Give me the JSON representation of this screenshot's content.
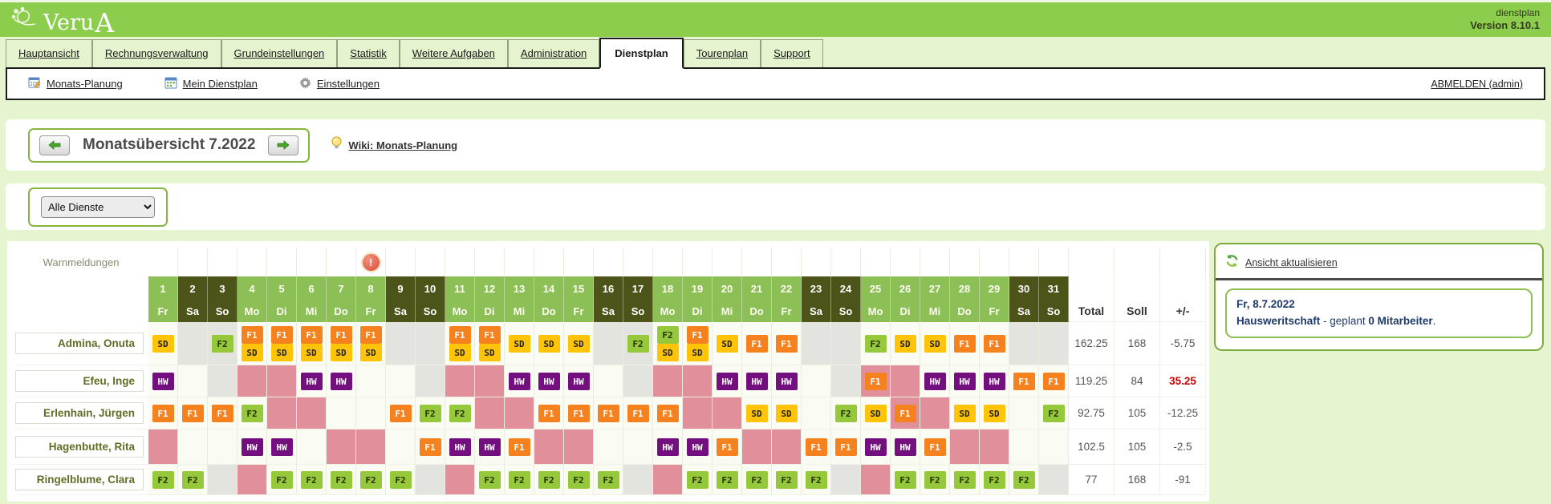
{
  "header": {
    "brand": {
      "main": "Veru",
      "accent": "A"
    },
    "app": "dienstplan",
    "version": "Version 8.10.1"
  },
  "tabs": [
    {
      "label": "Hauptansicht",
      "active": false
    },
    {
      "label": "Rechnungsverwaltung",
      "active": false
    },
    {
      "label": "Grundeinstellungen",
      "active": false
    },
    {
      "label": "Statistik",
      "active": false
    },
    {
      "label": "Weitere Aufgaben",
      "active": false
    },
    {
      "label": "Administration",
      "active": false
    },
    {
      "label": "Dienstplan",
      "active": true
    },
    {
      "label": "Tourenplan",
      "active": false
    },
    {
      "label": "Support",
      "active": false
    }
  ],
  "toolbar": {
    "items": [
      {
        "label": "Monats-Planung",
        "icon": "calendar-edit-icon"
      },
      {
        "label": "Mein Dienstplan",
        "icon": "calendar-icon"
      },
      {
        "label": "Einstellungen",
        "icon": "gear-icon"
      }
    ],
    "logout": "ABMELDEN (admin)"
  },
  "month_nav": {
    "title": "Monatsübersicht 7.2022"
  },
  "wiki_link": "Wiki: Monats-Planung",
  "filter": {
    "selected": "Alle Dienste"
  },
  "roster": {
    "warn_label": "Warnmeldungen",
    "warning_day": 8,
    "totals_headers": [
      "Total",
      "Soll",
      "+/-"
    ],
    "days": [
      {
        "n": "1",
        "dow": "Fr",
        "we": false
      },
      {
        "n": "2",
        "dow": "Sa",
        "we": true
      },
      {
        "n": "3",
        "dow": "So",
        "we": true
      },
      {
        "n": "4",
        "dow": "Mo",
        "we": false
      },
      {
        "n": "5",
        "dow": "Di",
        "we": false
      },
      {
        "n": "6",
        "dow": "Mi",
        "we": false
      },
      {
        "n": "7",
        "dow": "Do",
        "we": false
      },
      {
        "n": "8",
        "dow": "Fr",
        "we": false
      },
      {
        "n": "9",
        "dow": "Sa",
        "we": true
      },
      {
        "n": "10",
        "dow": "So",
        "we": true
      },
      {
        "n": "11",
        "dow": "Mo",
        "we": false
      },
      {
        "n": "12",
        "dow": "Di",
        "we": false
      },
      {
        "n": "13",
        "dow": "Mi",
        "we": false
      },
      {
        "n": "14",
        "dow": "Do",
        "we": false
      },
      {
        "n": "15",
        "dow": "Fr",
        "we": false
      },
      {
        "n": "16",
        "dow": "Sa",
        "we": true
      },
      {
        "n": "17",
        "dow": "So",
        "we": true
      },
      {
        "n": "18",
        "dow": "Mo",
        "we": false
      },
      {
        "n": "19",
        "dow": "Di",
        "we": false
      },
      {
        "n": "20",
        "dow": "Mi",
        "we": false
      },
      {
        "n": "21",
        "dow": "Do",
        "we": false
      },
      {
        "n": "22",
        "dow": "Fr",
        "we": false
      },
      {
        "n": "23",
        "dow": "Sa",
        "we": true
      },
      {
        "n": "24",
        "dow": "So",
        "we": true
      },
      {
        "n": "25",
        "dow": "Mo",
        "we": false
      },
      {
        "n": "26",
        "dow": "Di",
        "we": false
      },
      {
        "n": "27",
        "dow": "Mi",
        "we": false
      },
      {
        "n": "28",
        "dow": "Do",
        "we": false
      },
      {
        "n": "29",
        "dow": "Fr",
        "we": false
      },
      {
        "n": "30",
        "dow": "Sa",
        "we": true
      },
      {
        "n": "31",
        "dow": "So",
        "we": true
      }
    ],
    "employees": [
      {
        "name": "Admina, Onuta",
        "total": "162.25",
        "soll": "168",
        "diff": "-5.75",
        "diff_alert": false,
        "cells": [
          {
            "b": [
              "SD"
            ]
          },
          {
            "bg": "g"
          },
          {
            "b": [
              "F2"
            ],
            "bg": "g"
          },
          {
            "b": [
              "F1",
              "SD"
            ]
          },
          {
            "b": [
              "F1",
              "SD"
            ]
          },
          {
            "b": [
              "F1",
              "SD"
            ]
          },
          {
            "b": [
              "F1",
              "SD"
            ]
          },
          {
            "b": [
              "F1",
              "SD"
            ]
          },
          {
            "bg": "g"
          },
          {
            "bg": "g"
          },
          {
            "b": [
              "F1",
              "SD"
            ]
          },
          {
            "b": [
              "F1",
              "SD"
            ]
          },
          {
            "b": [
              "SD"
            ]
          },
          {
            "b": [
              "SD"
            ]
          },
          {
            "b": [
              "SD"
            ]
          },
          {
            "bg": "g"
          },
          {
            "b": [
              "F2"
            ],
            "bg": "g"
          },
          {
            "b": [
              "F2",
              "SD"
            ]
          },
          {
            "b": [
              "F1",
              "SD"
            ]
          },
          {
            "b": [
              "SD"
            ]
          },
          {
            "b": [
              "F1"
            ]
          },
          {
            "b": [
              "F1"
            ]
          },
          {
            "bg": "g"
          },
          {
            "bg": "g"
          },
          {
            "b": [
              "F2"
            ]
          },
          {
            "b": [
              "SD"
            ]
          },
          {
            "b": [
              "SD"
            ]
          },
          {
            "b": [
              "F1"
            ]
          },
          {
            "b": [
              "F1"
            ]
          },
          {
            "bg": "g"
          },
          {
            "bg": "g"
          }
        ]
      },
      {
        "name": "Efeu, Inge",
        "total": "119.25",
        "soll": "84",
        "diff": "35.25",
        "diff_alert": true,
        "cells": [
          {
            "b": [
              "HW"
            ]
          },
          null,
          {
            "bg": "g"
          },
          {
            "bg": "p"
          },
          {
            "bg": "p"
          },
          {
            "b": [
              "HW"
            ]
          },
          {
            "b": [
              "HW"
            ]
          },
          null,
          null,
          {
            "bg": "g"
          },
          {
            "bg": "p"
          },
          {
            "bg": "p"
          },
          {
            "b": [
              "HW"
            ]
          },
          {
            "b": [
              "HW"
            ]
          },
          {
            "b": [
              "HW"
            ]
          },
          null,
          {
            "bg": "g"
          },
          {
            "bg": "p"
          },
          {
            "bg": "p"
          },
          {
            "b": [
              "HW"
            ]
          },
          {
            "b": [
              "HW"
            ]
          },
          {
            "b": [
              "HW"
            ]
          },
          null,
          {
            "bg": "g"
          },
          {
            "b": [
              "F1"
            ],
            "bg": "p"
          },
          {
            "bg": "p"
          },
          {
            "b": [
              "HW"
            ]
          },
          {
            "b": [
              "HW"
            ]
          },
          {
            "b": [
              "HW"
            ]
          },
          {
            "b": [
              "F1"
            ]
          },
          {
            "b": [
              "F1"
            ]
          }
        ]
      },
      {
        "name": "Erlenhain, Jürgen",
        "total": "92.75",
        "soll": "105",
        "diff": "-12.25",
        "diff_alert": false,
        "cells": [
          {
            "b": [
              "F1"
            ]
          },
          {
            "b": [
              "F1"
            ]
          },
          {
            "b": [
              "F1"
            ]
          },
          {
            "b": [
              "F2"
            ]
          },
          {
            "bg": "p"
          },
          {
            "bg": "p"
          },
          null,
          null,
          {
            "b": [
              "F1"
            ]
          },
          {
            "b": [
              "F2"
            ]
          },
          {
            "b": [
              "F2"
            ]
          },
          {
            "bg": "p"
          },
          {
            "bg": "p"
          },
          {
            "b": [
              "F1"
            ]
          },
          {
            "b": [
              "F1"
            ]
          },
          {
            "b": [
              "F1"
            ]
          },
          {
            "b": [
              "F1"
            ]
          },
          {
            "b": [
              "F1"
            ]
          },
          {
            "bg": "p"
          },
          {
            "bg": "p"
          },
          {
            "b": [
              "SD"
            ]
          },
          {
            "b": [
              "SD"
            ]
          },
          null,
          {
            "b": [
              "F2"
            ]
          },
          {
            "b": [
              "SD"
            ]
          },
          {
            "b": [
              "F1"
            ],
            "bg": "p"
          },
          {
            "bg": "p"
          },
          {
            "b": [
              "SD"
            ]
          },
          {
            "b": [
              "SD"
            ]
          },
          null,
          {
            "b": [
              "F2"
            ]
          }
        ]
      },
      {
        "name": "Hagenbutte, Rita",
        "total": "102.5",
        "soll": "105",
        "diff": "-2.5",
        "diff_alert": false,
        "cells": [
          {
            "bg": "p"
          },
          null,
          null,
          {
            "b": [
              "HW"
            ]
          },
          {
            "b": [
              "HW"
            ]
          },
          null,
          {
            "bg": "p"
          },
          {
            "bg": "p"
          },
          null,
          {
            "b": [
              "F1"
            ]
          },
          {
            "b": [
              "HW"
            ]
          },
          {
            "b": [
              "HW"
            ]
          },
          {
            "b": [
              "F1"
            ]
          },
          {
            "bg": "p"
          },
          {
            "bg": "p"
          },
          null,
          null,
          {
            "b": [
              "HW"
            ]
          },
          {
            "b": [
              "HW"
            ]
          },
          {
            "b": [
              "F1"
            ]
          },
          {
            "bg": "p"
          },
          {
            "bg": "p"
          },
          {
            "b": [
              "F1"
            ]
          },
          {
            "b": [
              "F1"
            ]
          },
          {
            "b": [
              "HW"
            ]
          },
          {
            "b": [
              "HW"
            ]
          },
          {
            "b": [
              "F1"
            ]
          },
          {
            "bg": "p"
          },
          {
            "bg": "p"
          },
          null,
          null
        ]
      },
      {
        "name": "Ringelblume, Clara",
        "total": "77",
        "soll": "168",
        "diff": "-91",
        "diff_alert": false,
        "cells": [
          {
            "b": [
              "F2"
            ]
          },
          {
            "b": [
              "F2"
            ]
          },
          {
            "bg": "g"
          },
          {
            "bg": "p"
          },
          {
            "b": [
              "F2"
            ]
          },
          {
            "b": [
              "F2"
            ]
          },
          {
            "b": [
              "F2"
            ]
          },
          {
            "b": [
              "F2"
            ]
          },
          {
            "b": [
              "F2"
            ]
          },
          {
            "bg": "g"
          },
          {
            "bg": "p"
          },
          {
            "b": [
              "F2"
            ]
          },
          {
            "b": [
              "F2"
            ]
          },
          {
            "b": [
              "F2"
            ]
          },
          {
            "b": [
              "F2"
            ]
          },
          {
            "b": [
              "F2"
            ]
          },
          {
            "bg": "g"
          },
          {
            "bg": "p"
          },
          {
            "b": [
              "F2"
            ]
          },
          {
            "b": [
              "F2"
            ]
          },
          {
            "b": [
              "F2"
            ]
          },
          {
            "b": [
              "F2"
            ]
          },
          {
            "b": [
              "F2"
            ]
          },
          {
            "bg": "g"
          },
          {
            "bg": "p"
          },
          {
            "b": [
              "F2"
            ]
          },
          {
            "b": [
              "F2"
            ]
          },
          {
            "b": [
              "F2"
            ]
          },
          {
            "b": [
              "F2"
            ]
          },
          {
            "b": [
              "F2"
            ]
          },
          {
            "bg": "g"
          }
        ]
      }
    ]
  },
  "side_panel": {
    "refresh": "Ansicht aktualisieren",
    "date": "Fr, 8.7.2022",
    "dept": "Hausweritschaft",
    "line_mid": " - geplant ",
    "count": "0 Mitarbeiter",
    "line_end": "."
  },
  "colors": {
    "header_green": "#8ccd4d",
    "day_green": "#8cbf55",
    "weekend_dark": "#4c5419",
    "f1": "#f5821f",
    "f2": "#96c83c",
    "sd": "#ffc408",
    "hw": "#730f7e",
    "absence_pink": "#e1909b",
    "free_gray": "#e3e3e0",
    "alert_red": "#cc0000"
  }
}
